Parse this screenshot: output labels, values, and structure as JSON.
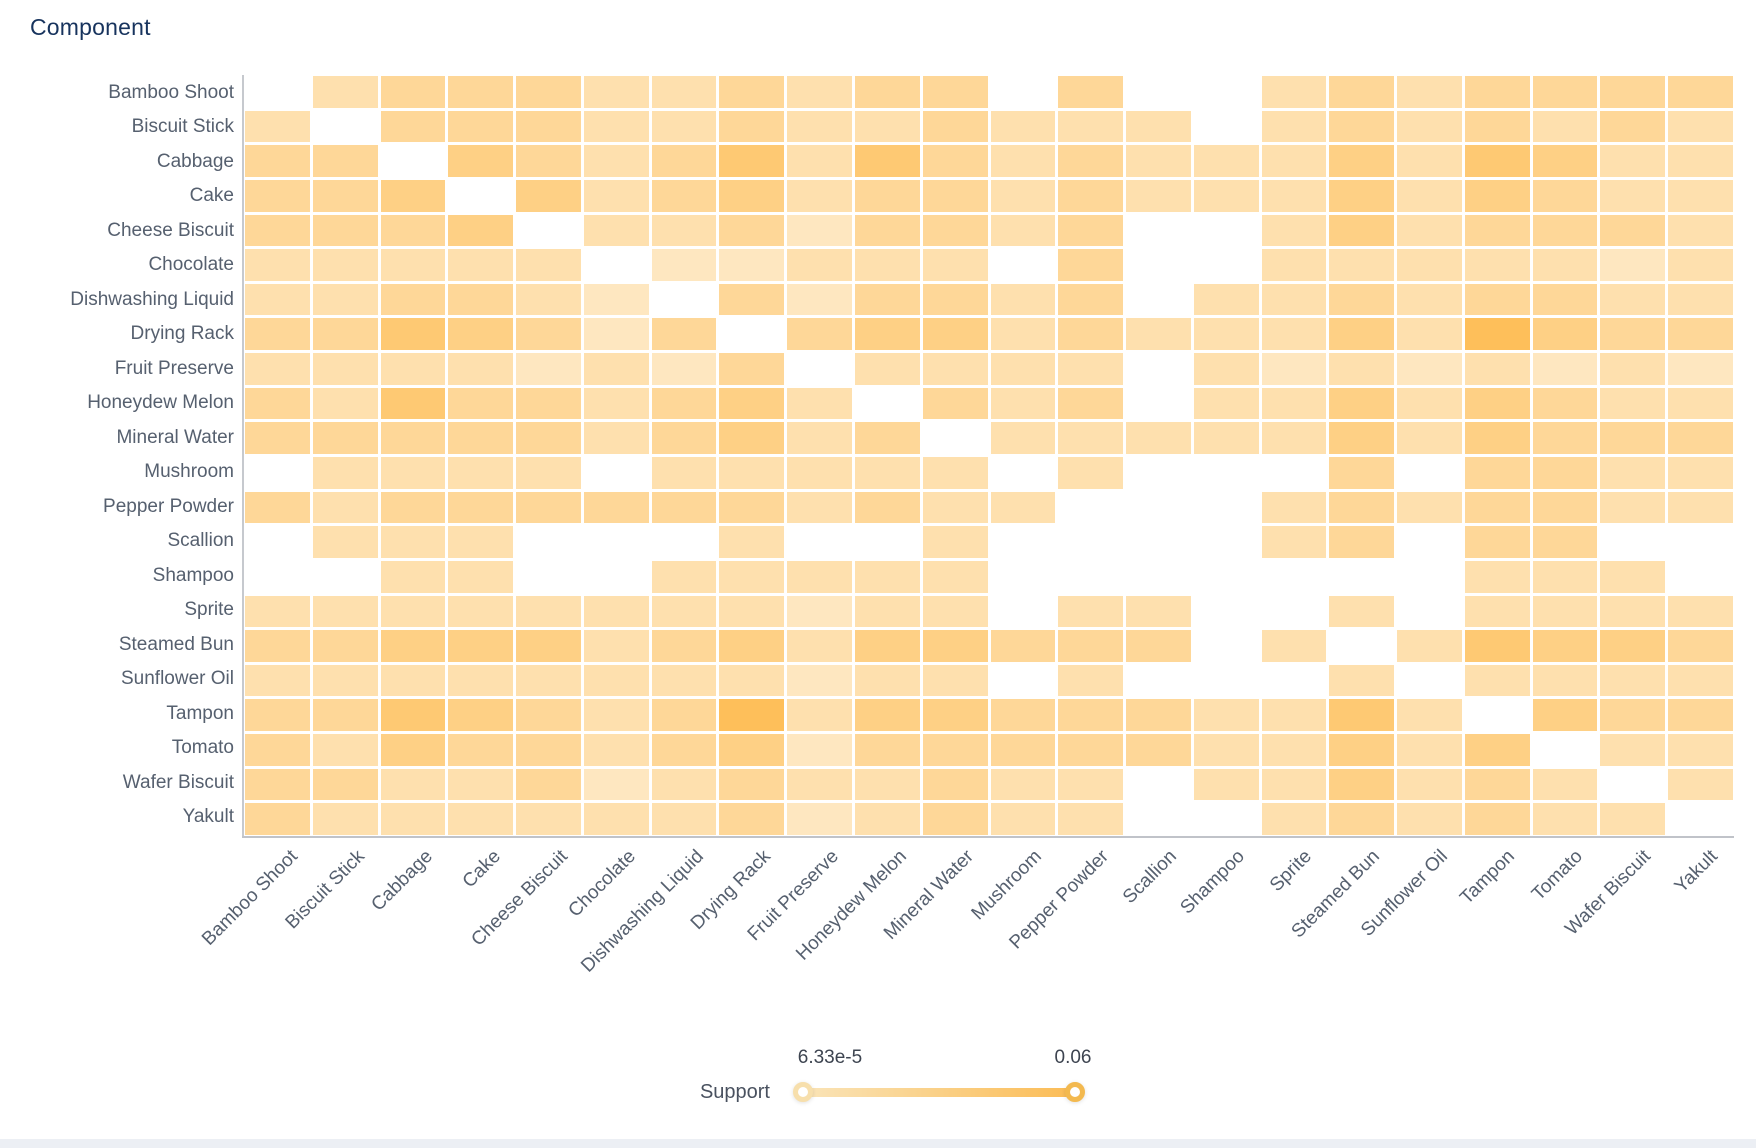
{
  "title": "Component",
  "legend": {
    "label": "Support",
    "min_label": "6.33e-5",
    "max_label": "0.06"
  },
  "chart_data": {
    "type": "heatmap",
    "title": "Component",
    "legend": {
      "label": "Support",
      "min_label": "6.33e-5",
      "max_label": "0.06",
      "position": "bottom",
      "control": "range-slider"
    },
    "categories": [
      "Bamboo Shoot",
      "Biscuit Stick",
      "Cabbage",
      "Cake",
      "Cheese Biscuit",
      "Chocolate",
      "Dishwashing Liquid",
      "Drying Rack",
      "Fruit Preserve",
      "Honeydew Melon",
      "Mineral Water",
      "Mushroom",
      "Pepper Powder",
      "Scallion",
      "Shampoo",
      "Sprite",
      "Steamed Bun",
      "Sunflower Oil",
      "Tampon",
      "Tomato",
      "Wafer Biscuit",
      "Yakult"
    ],
    "x_axis_uses_same_categories": true,
    "intensity_levels_note": "visual support intensity read from cell color, 1=lightest..6=darkest, null=no cell (white)",
    "matrix_levels": [
      [
        null,
        2,
        3,
        3,
        3,
        2,
        2,
        3,
        2,
        3,
        3,
        null,
        3,
        null,
        null,
        2,
        3,
        2,
        3,
        3,
        3,
        3
      ],
      [
        2,
        null,
        3,
        3,
        3,
        2,
        2,
        3,
        2,
        2,
        3,
        2,
        2,
        2,
        null,
        2,
        3,
        2,
        3,
        2,
        3,
        2
      ],
      [
        3,
        3,
        null,
        4,
        3,
        2,
        3,
        5,
        2,
        5,
        3,
        2,
        3,
        2,
        2,
        2,
        4,
        2,
        5,
        4,
        2,
        2
      ],
      [
        3,
        3,
        4,
        null,
        4,
        2,
        3,
        4,
        2,
        3,
        3,
        2,
        3,
        2,
        2,
        2,
        4,
        2,
        4,
        3,
        2,
        2
      ],
      [
        3,
        3,
        3,
        4,
        null,
        2,
        2,
        3,
        1,
        3,
        3,
        2,
        3,
        null,
        null,
        2,
        4,
        2,
        3,
        3,
        3,
        2
      ],
      [
        2,
        2,
        2,
        2,
        2,
        null,
        1,
        1,
        2,
        2,
        2,
        null,
        3,
        null,
        null,
        2,
        2,
        2,
        2,
        2,
        1,
        2
      ],
      [
        2,
        2,
        3,
        3,
        2,
        1,
        null,
        3,
        1,
        3,
        3,
        2,
        3,
        null,
        2,
        2,
        3,
        2,
        3,
        3,
        2,
        2
      ],
      [
        3,
        3,
        5,
        4,
        3,
        1,
        3,
        null,
        3,
        4,
        4,
        2,
        3,
        2,
        2,
        2,
        4,
        2,
        6,
        4,
        3,
        3
      ],
      [
        2,
        2,
        2,
        2,
        1,
        2,
        1,
        3,
        null,
        2,
        2,
        2,
        2,
        null,
        2,
        1,
        2,
        1,
        2,
        1,
        2,
        1
      ],
      [
        3,
        2,
        5,
        3,
        3,
        2,
        3,
        4,
        2,
        null,
        3,
        2,
        3,
        null,
        2,
        2,
        4,
        2,
        4,
        3,
        2,
        2
      ],
      [
        3,
        3,
        3,
        3,
        3,
        2,
        3,
        4,
        2,
        3,
        null,
        2,
        2,
        2,
        2,
        2,
        4,
        2,
        4,
        3,
        3,
        3
      ],
      [
        null,
        2,
        2,
        2,
        2,
        null,
        2,
        2,
        2,
        2,
        2,
        null,
        2,
        null,
        null,
        null,
        3,
        null,
        3,
        3,
        2,
        2
      ],
      [
        3,
        2,
        3,
        3,
        3,
        3,
        3,
        3,
        2,
        3,
        2,
        2,
        null,
        null,
        null,
        2,
        3,
        2,
        3,
        3,
        2,
        2
      ],
      [
        null,
        2,
        2,
        2,
        null,
        null,
        null,
        2,
        null,
        null,
        2,
        null,
        null,
        null,
        null,
        2,
        3,
        null,
        3,
        3,
        null,
        null
      ],
      [
        null,
        null,
        2,
        2,
        null,
        null,
        2,
        2,
        2,
        2,
        2,
        null,
        null,
        null,
        null,
        null,
        null,
        null,
        2,
        2,
        2,
        null
      ],
      [
        2,
        2,
        2,
        2,
        2,
        2,
        2,
        2,
        1,
        2,
        2,
        null,
        2,
        2,
        null,
        null,
        2,
        null,
        2,
        2,
        2,
        2
      ],
      [
        3,
        3,
        4,
        4,
        4,
        2,
        3,
        4,
        2,
        4,
        4,
        3,
        3,
        3,
        null,
        2,
        null,
        2,
        5,
        4,
        4,
        3
      ],
      [
        2,
        2,
        2,
        2,
        2,
        2,
        2,
        2,
        1,
        2,
        2,
        null,
        2,
        null,
        null,
        null,
        2,
        null,
        2,
        2,
        2,
        2
      ],
      [
        3,
        3,
        5,
        4,
        3,
        2,
        3,
        6,
        2,
        4,
        4,
        3,
        3,
        3,
        2,
        2,
        5,
        2,
        null,
        4,
        3,
        3
      ],
      [
        3,
        2,
        4,
        3,
        3,
        2,
        3,
        4,
        1,
        3,
        3,
        3,
        3,
        3,
        2,
        2,
        4,
        2,
        4,
        null,
        2,
        2
      ],
      [
        3,
        3,
        2,
        2,
        3,
        1,
        2,
        3,
        2,
        2,
        3,
        2,
        2,
        null,
        2,
        2,
        4,
        2,
        3,
        2,
        null,
        2
      ],
      [
        3,
        2,
        2,
        2,
        2,
        2,
        2,
        3,
        1,
        2,
        3,
        2,
        2,
        null,
        null,
        2,
        3,
        2,
        3,
        2,
        2,
        null
      ]
    ],
    "level_to_t": {
      "1": 0.1,
      "2": 0.26,
      "3": 0.45,
      "4": 0.62,
      "5": 0.78,
      "6": 1.0
    },
    "color_low": "#FEEBCB",
    "color_high": "#FEBF5A",
    "missing_color": "#FFFFFF",
    "value_range": [
      "6.33e-5",
      "0.06"
    ]
  },
  "colors": {
    "title_text": "#17335D",
    "axis_label_text": "#56606F",
    "axis_line": "#C6C9CE",
    "slider_track_from": "#FAE4B8",
    "slider_track_to": "#FBBC55",
    "slider_handle_min_ring": "#F7DFAC",
    "slider_handle_max_ring": "#F3B94F",
    "bottom_bar": "#ECEFF4"
  }
}
